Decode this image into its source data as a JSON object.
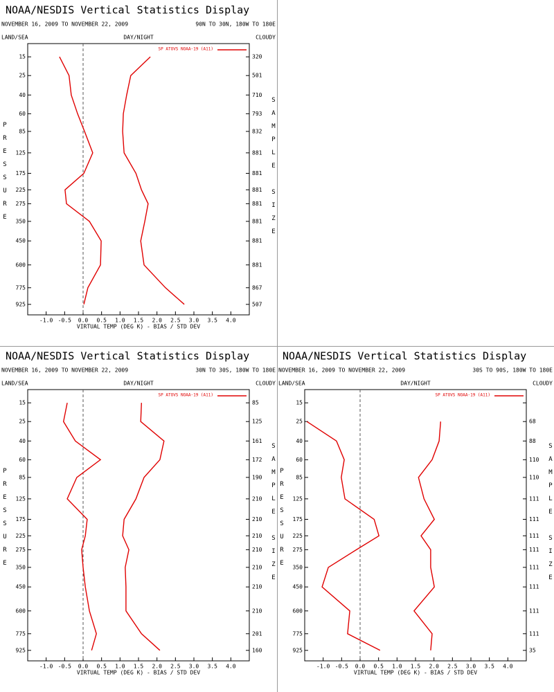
{
  "chart_data": [
    {
      "type": "line",
      "title": "NOAA/NESDIS Vertical Statistics Display",
      "subtitle": "NOVEMBER 16, 2009 TO NOVEMBER 22, 2009",
      "region": "90N TO 30N, 180W TO 180E",
      "land_sea": "LAND/SEA",
      "day_night": "DAY/NIGHT",
      "cloudy": "CLOUDY",
      "legend": "SP ATOVS NOAA-19 (A11)",
      "xlabel": "VIRTUAL TEMP (DEG K) - BIAS / STD DEV",
      "ylabel": "PRESSURE",
      "y2label": "SAMPLE SIZE",
      "color": "#e00000",
      "categories": [
        15,
        25,
        40,
        60,
        85,
        125,
        175,
        225,
        275,
        350,
        450,
        600,
        775,
        925
      ],
      "series": [
        {
          "values": [
            -0.64,
            -0.38,
            -0.32,
            -0.15,
            0.04,
            0.26,
            0.02,
            -0.49,
            -0.45,
            0.17,
            0.49,
            0.47,
            0.13,
            0.02
          ]
        },
        {
          "values": [
            1.82,
            1.29,
            1.18,
            1.09,
            1.07,
            1.11,
            1.43,
            1.58,
            1.76,
            1.67,
            1.56,
            1.65,
            2.23,
            2.74
          ]
        }
      ],
      "sample_size": [
        320,
        501,
        710,
        793,
        832,
        881,
        881,
        881,
        881,
        881,
        881,
        881,
        867,
        507
      ],
      "xlim": [
        -1.5,
        4.5
      ],
      "ylim": [
        10,
        1030
      ],
      "xticks": [
        {
          "value": -1,
          "label": "-1.0"
        },
        -0.5,
        {
          "value": 0,
          "label": "0.0"
        },
        0.5,
        {
          "value": 1,
          "label": "1.0"
        },
        1.5,
        {
          "value": 2,
          "label": "2.0"
        },
        2.5,
        {
          "value": 3,
          "label": "3.0"
        },
        3.5,
        {
          "value": 4,
          "label": "4.0"
        }
      ]
    },
    {
      "type": "line",
      "title": "NOAA/NESDIS Vertical Statistics Display",
      "subtitle": "NOVEMBER 16, 2009 TO NOVEMBER 22, 2009",
      "region": "30N TO 30S, 180W TO 180E",
      "land_sea": "LAND/SEA",
      "day_night": "DAY/NIGHT",
      "cloudy": "CLOUDY",
      "legend": "SP ATOVS NOAA-19 (A11)",
      "xlabel": "VIRTUAL TEMP (DEG K) - BIAS / STD DEV",
      "ylabel": "PRESSURE",
      "y2label": "SAMPLE SIZE",
      "color": "#e00000",
      "categories": [
        15,
        25,
        40,
        60,
        85,
        125,
        175,
        225,
        275,
        350,
        450,
        600,
        775,
        925
      ],
      "series": [
        {
          "values": [
            -0.43,
            -0.53,
            -0.21,
            0.47,
            -0.17,
            -0.43,
            0.11,
            0.06,
            -0.04,
            0.0,
            0.06,
            0.17,
            0.36,
            0.23
          ]
        },
        {
          "values": [
            1.58,
            1.56,
            2.19,
            2.08,
            1.65,
            1.43,
            1.11,
            1.07,
            1.24,
            1.14,
            1.16,
            1.16,
            1.58,
            2.08
          ]
        }
      ],
      "sample_size": [
        85,
        125,
        161,
        172,
        190,
        210,
        210,
        210,
        210,
        210,
        210,
        210,
        201,
        160
      ],
      "xlim": [
        -1.5,
        4.5
      ],
      "ylim": [
        10,
        1030
      ],
      "xticks": [
        {
          "value": -1,
          "label": "-1.0"
        },
        -0.5,
        {
          "value": 0,
          "label": "0.0"
        },
        0.5,
        {
          "value": 1,
          "label": "1.0"
        },
        1.5,
        {
          "value": 2,
          "label": "2.0"
        },
        2.5,
        {
          "value": 3,
          "label": "3.0"
        },
        3.5,
        {
          "value": 4,
          "label": "4.0"
        }
      ]
    },
    {
      "type": "line",
      "title": "NOAA/NESDIS Vertical Statistics Display",
      "subtitle": "NOVEMBER 16, 2009 TO NOVEMBER 22, 2009",
      "region": "30S TO 90S, 180W TO 180E",
      "land_sea": "LAND/SEA",
      "day_night": "DAY/NIGHT",
      "cloudy": "CLOUDY",
      "legend": "SP ATOVS NOAA-19 (A11)",
      "xlabel": "VIRTUAL TEMP (DEG K) - BIAS / STD DEV",
      "ylabel": "PRESSURE",
      "y2label": "SAMPLE SIZE",
      "color": "#e00000",
      "categories": [
        15,
        25,
        40,
        60,
        85,
        125,
        175,
        225,
        275,
        350,
        450,
        600,
        775,
        925
      ],
      "series": [
        {
          "values": [
            null,
            -1.44,
            -0.64,
            -0.43,
            -0.51,
            -0.41,
            0.38,
            0.51,
            -0.1,
            -0.86,
            -1.03,
            -0.28,
            -0.34,
            0.54
          ]
        },
        {
          "values": [
            null,
            2.18,
            2.14,
            1.95,
            1.58,
            1.73,
            2.01,
            1.65,
            1.91,
            1.91,
            2.01,
            1.46,
            1.95,
            1.91
          ]
        }
      ],
      "sample_size": [
        null,
        68,
        88,
        110,
        110,
        111,
        111,
        111,
        111,
        111,
        111,
        111,
        111,
        35
      ],
      "xlim": [
        -1.5,
        4.5
      ],
      "ylim": [
        10,
        1030
      ],
      "xticks": [
        {
          "value": -1,
          "label": "-1.0"
        },
        -0.5,
        {
          "value": 0,
          "label": "0.0"
        },
        0.5,
        {
          "value": 1,
          "label": "1.0"
        },
        1.5,
        {
          "value": 2,
          "label": "2.0"
        },
        2.5,
        {
          "value": 3,
          "label": "3.0"
        },
        3.5,
        {
          "value": 4,
          "label": "4.0"
        }
      ]
    }
  ]
}
